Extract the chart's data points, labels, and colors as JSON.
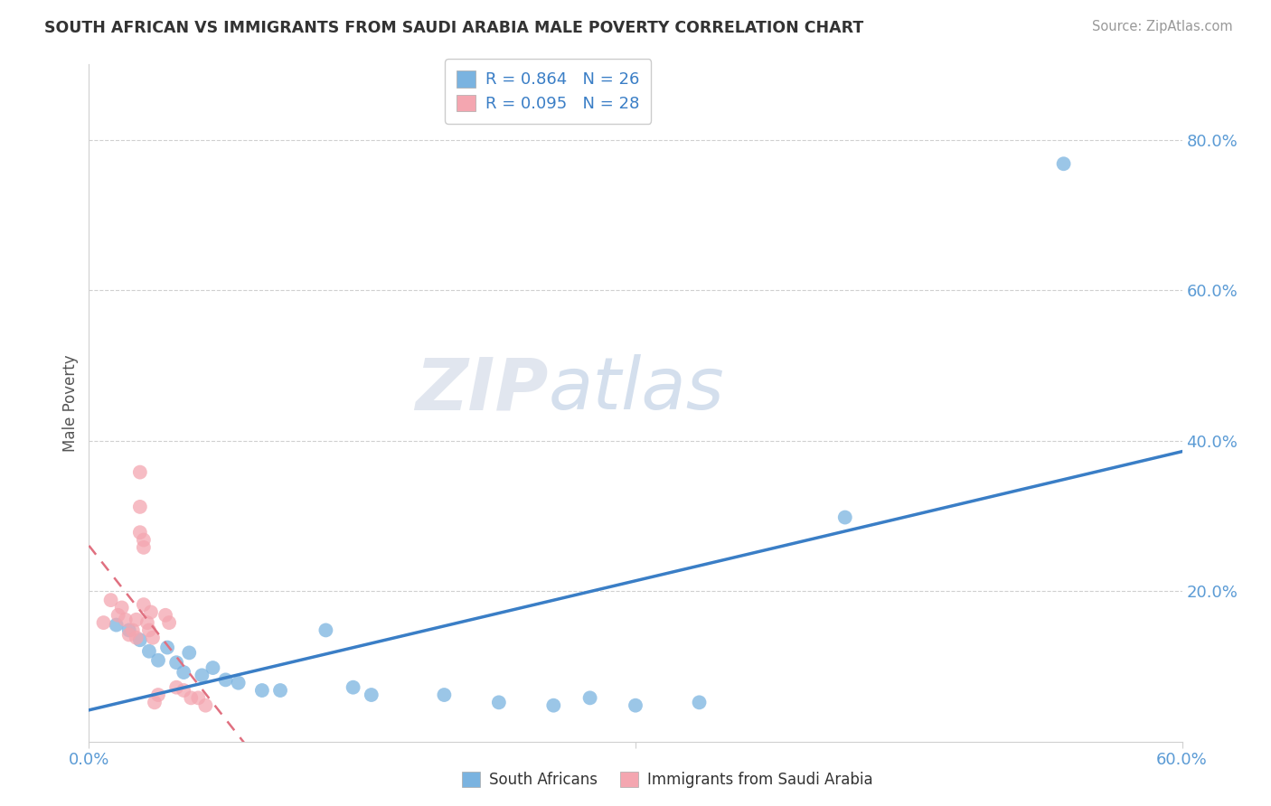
{
  "title": "SOUTH AFRICAN VS IMMIGRANTS FROM SAUDI ARABIA MALE POVERTY CORRELATION CHART",
  "source": "Source: ZipAtlas.com",
  "ylabel": "Male Poverty",
  "xlim": [
    0.0,
    0.6
  ],
  "ylim": [
    0.0,
    0.9
  ],
  "xtick_vals": [
    0.0,
    0.3,
    0.6
  ],
  "xtick_labels": [
    "0.0%",
    "",
    "60.0%"
  ],
  "ytick_values": [
    0.2,
    0.4,
    0.6,
    0.8
  ],
  "ytick_labels": [
    "20.0%",
    "40.0%",
    "60.0%",
    "80.0%"
  ],
  "blue_R": 0.864,
  "blue_N": 26,
  "pink_R": 0.095,
  "pink_N": 28,
  "blue_color": "#7ab3e0",
  "pink_color": "#f4a6b0",
  "blue_line_color": "#3a7ec6",
  "pink_line_color": "#e07080",
  "background_color": "#ffffff",
  "blue_points": [
    [
      0.015,
      0.155
    ],
    [
      0.022,
      0.148
    ],
    [
      0.028,
      0.135
    ],
    [
      0.033,
      0.12
    ],
    [
      0.038,
      0.108
    ],
    [
      0.043,
      0.125
    ],
    [
      0.048,
      0.105
    ],
    [
      0.052,
      0.092
    ],
    [
      0.055,
      0.118
    ],
    [
      0.062,
      0.088
    ],
    [
      0.068,
      0.098
    ],
    [
      0.075,
      0.082
    ],
    [
      0.082,
      0.078
    ],
    [
      0.095,
      0.068
    ],
    [
      0.105,
      0.068
    ],
    [
      0.13,
      0.148
    ],
    [
      0.145,
      0.072
    ],
    [
      0.155,
      0.062
    ],
    [
      0.195,
      0.062
    ],
    [
      0.225,
      0.052
    ],
    [
      0.255,
      0.048
    ],
    [
      0.275,
      0.058
    ],
    [
      0.3,
      0.048
    ],
    [
      0.335,
      0.052
    ],
    [
      0.415,
      0.298
    ],
    [
      0.535,
      0.768
    ]
  ],
  "pink_points": [
    [
      0.008,
      0.158
    ],
    [
      0.012,
      0.188
    ],
    [
      0.016,
      0.168
    ],
    [
      0.018,
      0.178
    ],
    [
      0.02,
      0.162
    ],
    [
      0.022,
      0.142
    ],
    [
      0.024,
      0.148
    ],
    [
      0.026,
      0.138
    ],
    [
      0.026,
      0.162
    ],
    [
      0.028,
      0.358
    ],
    [
      0.028,
      0.312
    ],
    [
      0.028,
      0.278
    ],
    [
      0.03,
      0.268
    ],
    [
      0.03,
      0.258
    ],
    [
      0.03,
      0.182
    ],
    [
      0.032,
      0.158
    ],
    [
      0.033,
      0.148
    ],
    [
      0.034,
      0.172
    ],
    [
      0.035,
      0.138
    ],
    [
      0.036,
      0.052
    ],
    [
      0.038,
      0.062
    ],
    [
      0.042,
      0.168
    ],
    [
      0.044,
      0.158
    ],
    [
      0.048,
      0.072
    ],
    [
      0.052,
      0.068
    ],
    [
      0.056,
      0.058
    ],
    [
      0.06,
      0.058
    ],
    [
      0.064,
      0.048
    ]
  ],
  "grid_color": "#d0d0d0",
  "title_color": "#333333",
  "axis_label_color": "#5b9bd5",
  "legend_label_color": "#3a7ec6"
}
